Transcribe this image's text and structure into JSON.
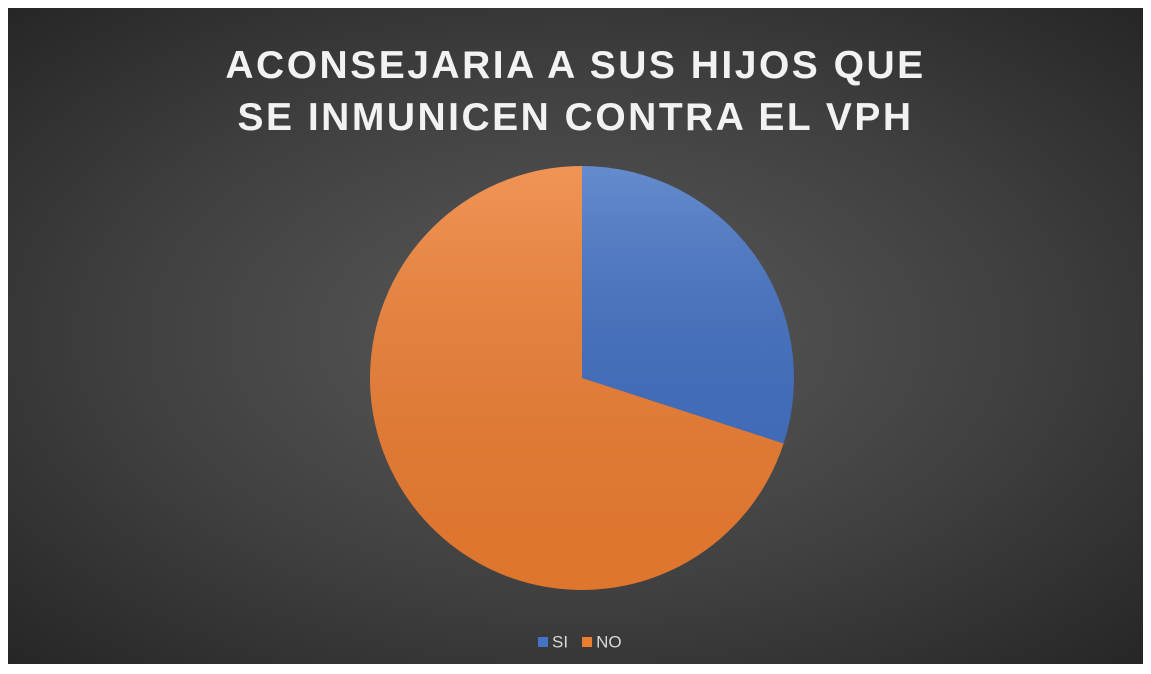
{
  "chart_data": {
    "type": "pie",
    "title": "ACONSEJARIA A SUS HIJOS QUE SE INMUNICEN CONTRA EL VPH",
    "categories": [
      "SI",
      "NO"
    ],
    "values": [
      30,
      70
    ],
    "colors": [
      "#4472c4",
      "#ed7d31"
    ],
    "legend": "bottom"
  }
}
